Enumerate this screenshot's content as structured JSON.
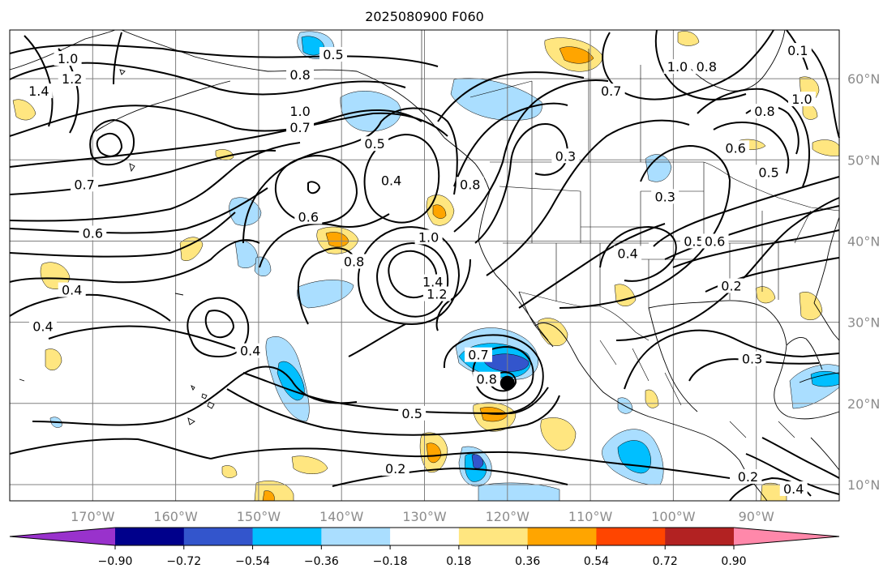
{
  "chart_data": {
    "type": "contour",
    "title": "2025080900 F060",
    "projection": "PlateCarree",
    "extent": {
      "lon": [
        -180,
        -80
      ],
      "lat": [
        8,
        66
      ]
    },
    "lon_ticks": [
      -170,
      -160,
      -150,
      -140,
      -130,
      -120,
      -110,
      -100,
      -90
    ],
    "lon_tick_labels": [
      "170°W",
      "160°W",
      "150°W",
      "140°W",
      "130°W",
      "120°W",
      "110°W",
      "100°W",
      "90°W"
    ],
    "lat_ticks": [
      10,
      20,
      30,
      40,
      50,
      60
    ],
    "lat_tick_labels": [
      "10°N",
      "20°N",
      "30°N",
      "40°N",
      "50°N",
      "60°N"
    ],
    "grid": true,
    "colorbar": {
      "orientation": "horizontal",
      "extend": "both",
      "levels": [
        -0.9,
        -0.72,
        -0.54,
        -0.36,
        -0.18,
        0.18,
        0.36,
        0.54,
        0.72,
        0.9
      ],
      "tick_labels": [
        "−0.90",
        "−0.72",
        "−0.54",
        "−0.36",
        "−0.18",
        "0.18",
        "0.36",
        "0.54",
        "0.72",
        "0.90"
      ],
      "colors": [
        "#9932cc",
        "#00008b",
        "#3355cc",
        "#00bfff",
        "#aadeff",
        "#ffffff",
        "#ffe680",
        "#ffa500",
        "#ff4500",
        "#b22222",
        "#ff88aa"
      ]
    },
    "contour_labels": [
      {
        "text": "0.2",
        "lon": -133.5,
        "lat": 12.0
      },
      {
        "text": "0.5",
        "lon": -131.5,
        "lat": 18.8
      },
      {
        "text": "0.8",
        "lon": -122.5,
        "lat": 23.0
      },
      {
        "text": "0.7",
        "lon": -123.5,
        "lat": 26.0
      },
      {
        "text": "1.2",
        "lon": -128.5,
        "lat": 33.5
      },
      {
        "text": "1.4",
        "lon": -129.0,
        "lat": 35.0
      },
      {
        "text": "1.0",
        "lon": -129.5,
        "lat": 40.5
      },
      {
        "text": "0.8",
        "lon": -138.5,
        "lat": 37.5
      },
      {
        "text": "0.6",
        "lon": -144.0,
        "lat": 43.0
      },
      {
        "text": "0.4",
        "lon": -134.0,
        "lat": 47.5
      },
      {
        "text": "0.5",
        "lon": -136.0,
        "lat": 52.0
      },
      {
        "text": "0.7",
        "lon": -145.0,
        "lat": 54.0
      },
      {
        "text": "1.0",
        "lon": -145.0,
        "lat": 56.0
      },
      {
        "text": "0.8",
        "lon": -145.0,
        "lat": 60.5
      },
      {
        "text": "0.5",
        "lon": -141.0,
        "lat": 63.0
      },
      {
        "text": "0.6",
        "lon": -170.0,
        "lat": 41.0
      },
      {
        "text": "0.7",
        "lon": -171.0,
        "lat": 47.0
      },
      {
        "text": "1.4",
        "lon": -176.5,
        "lat": 58.5
      },
      {
        "text": "1.2",
        "lon": -172.5,
        "lat": 60.0
      },
      {
        "text": "1.0",
        "lon": -173.0,
        "lat": 62.5
      },
      {
        "text": "0.4",
        "lon": -176.0,
        "lat": 29.5
      },
      {
        "text": "0.4",
        "lon": -172.5,
        "lat": 34.0
      },
      {
        "text": "0.4",
        "lon": -151.0,
        "lat": 26.5
      },
      {
        "text": "0.8",
        "lon": -124.5,
        "lat": 47.0
      },
      {
        "text": "0.3",
        "lon": -113.0,
        "lat": 50.5
      },
      {
        "text": "0.4",
        "lon": -105.5,
        "lat": 38.5
      },
      {
        "text": "0.3",
        "lon": -101.0,
        "lat": 45.5
      },
      {
        "text": "0.5",
        "lon": -97.5,
        "lat": 40.0
      },
      {
        "text": "0.6",
        "lon": -95.0,
        "lat": 40.0
      },
      {
        "text": "0.2",
        "lon": -93.0,
        "lat": 34.5
      },
      {
        "text": "0.3",
        "lon": -90.5,
        "lat": 25.5
      },
      {
        "text": "0.6",
        "lon": -92.5,
        "lat": 51.5
      },
      {
        "text": "0.5",
        "lon": -88.5,
        "lat": 48.5
      },
      {
        "text": "0.8",
        "lon": -89.0,
        "lat": 56.0
      },
      {
        "text": "1.0",
        "lon": -84.5,
        "lat": 57.5
      },
      {
        "text": "0.8",
        "lon": -96.0,
        "lat": 61.5
      },
      {
        "text": "1.0",
        "lon": -99.5,
        "lat": 61.5
      },
      {
        "text": "0.7",
        "lon": -107.5,
        "lat": 58.5
      },
      {
        "text": "0.1",
        "lon": -85.0,
        "lat": 63.5
      },
      {
        "text": "0.2",
        "lon": -91.0,
        "lat": 11.0
      },
      {
        "text": "0.4",
        "lon": -85.5,
        "lat": 9.5
      }
    ],
    "marker": {
      "lon": -120.0,
      "lat": 22.5,
      "symbol": "filled-circle",
      "color": "#000000"
    }
  }
}
